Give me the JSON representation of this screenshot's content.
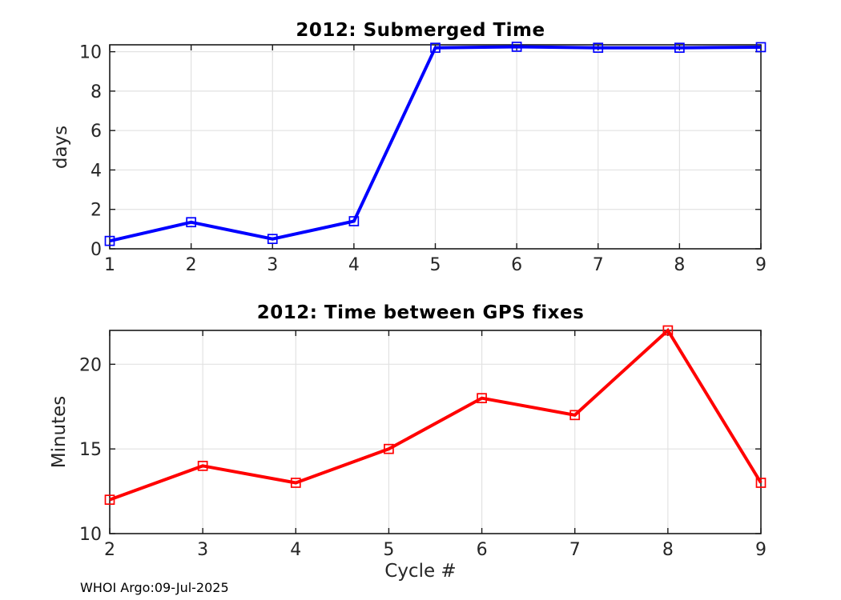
{
  "figure": {
    "background": "#ffffff",
    "footer": "WHOI Argo:09-Jul-2025"
  },
  "colors": {
    "axis": "#1a1a1a",
    "grid": "#e2e2e2",
    "tick_label": "#262626",
    "title": "#000000"
  },
  "chart_data": [
    {
      "id": "submerged-time",
      "type": "line",
      "title": "2012: Submerged Time",
      "ylabel": "days",
      "xlabel": "",
      "x": [
        1,
        2,
        3,
        4,
        5,
        6,
        7,
        8,
        9
      ],
      "values": [
        0.4,
        1.35,
        0.5,
        1.4,
        10.2,
        10.25,
        10.2,
        10.2,
        10.23
      ],
      "xlim": [
        1,
        9
      ],
      "ylim": [
        0,
        10.35
      ],
      "xticks": [
        1,
        2,
        3,
        4,
        5,
        6,
        7,
        8,
        9
      ],
      "yticks": [
        0,
        2,
        4,
        6,
        8,
        10
      ],
      "grid": true,
      "legend": "none",
      "line_color": "#0000ff",
      "marker": "open-square"
    },
    {
      "id": "gps-fix-interval",
      "type": "line",
      "title": "2012: Time between GPS fixes",
      "ylabel": "Minutes",
      "xlabel": "Cycle #",
      "x": [
        2,
        3,
        4,
        5,
        6,
        7,
        8,
        9
      ],
      "values": [
        12,
        14,
        13,
        15,
        18,
        17,
        22,
        13
      ],
      "xlim": [
        2,
        9
      ],
      "ylim": [
        10,
        22
      ],
      "xticks": [
        2,
        3,
        4,
        5,
        6,
        7,
        8,
        9
      ],
      "yticks": [
        10,
        15,
        20
      ],
      "grid": true,
      "legend": "none",
      "line_color": "#ff0000",
      "marker": "open-square"
    }
  ]
}
